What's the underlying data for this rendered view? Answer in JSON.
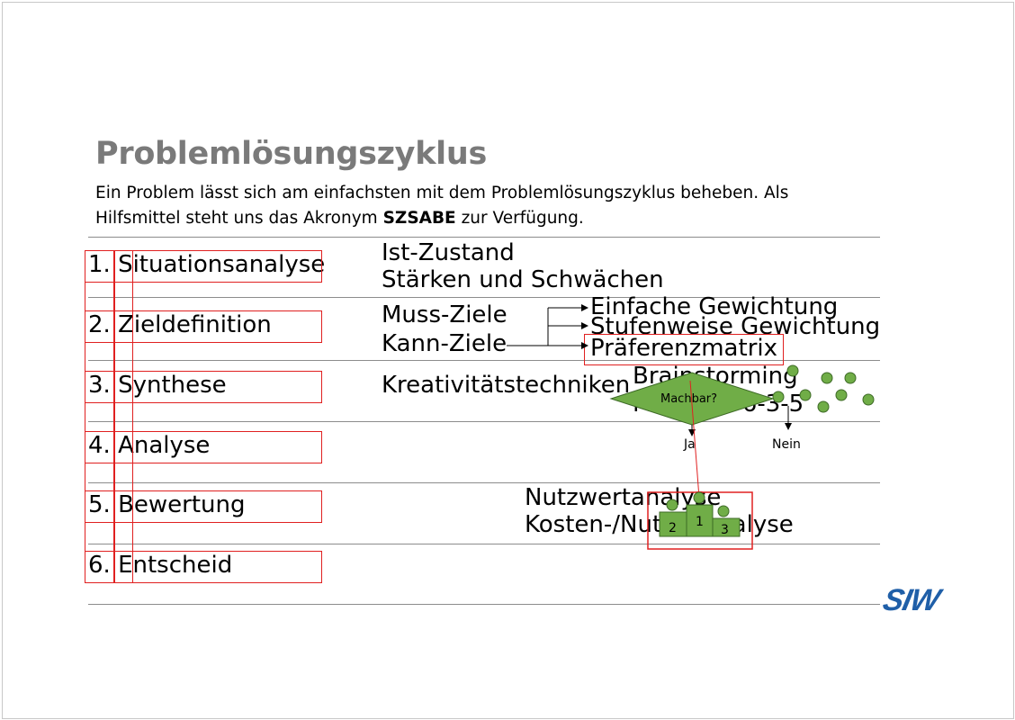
{
  "title": "Problemlösungszyklus",
  "intro": {
    "line1": "Ein Problem lässt sich am einfachsten mit dem Problemlösungszyklus beheben. Als",
    "line2_before": "Hilfsmittel steht uns das Akronym ",
    "acronym": "SZSABE",
    "line2_after": " zur Verfügung."
  },
  "steps": [
    {
      "num": "1.",
      "label": "Situationsanalyse"
    },
    {
      "num": "2.",
      "label": "Zieldefinition"
    },
    {
      "num": "3.",
      "label": "Synthese"
    },
    {
      "num": "4.",
      "label": "Analyse"
    },
    {
      "num": "5.",
      "label": "Bewertung"
    },
    {
      "num": "6.",
      "label": "Entscheid"
    }
  ],
  "situation": {
    "ist": "Ist-Zustand",
    "swot": "Stärken und Schwächen"
  },
  "ziele": {
    "muss": "Muss-Ziele",
    "kann": "Kann-Ziele",
    "methods": [
      "Einfache Gewichtung",
      "Stufenweise Gewichtung",
      "Präferenzmatrix"
    ]
  },
  "synthese": {
    "kreativ": "Kreativitätstechniken",
    "brainstorming": "Brainstorming",
    "methode": "Methode 6-3-5"
  },
  "decision": {
    "question": "Machbar?",
    "yes": "Ja",
    "no": "Nein"
  },
  "bewertung": {
    "nutzwert": "Nutzwertanalyse",
    "kosten": "Kosten-/Nutzenanalyse"
  },
  "podium": {
    "first": "1",
    "second": "2",
    "third": "3"
  },
  "logo": "SIW",
  "colors": {
    "title": "#7a7a7a",
    "highlight": "#e02020",
    "green": "#70ad47",
    "logo": "#1f5fa8"
  }
}
